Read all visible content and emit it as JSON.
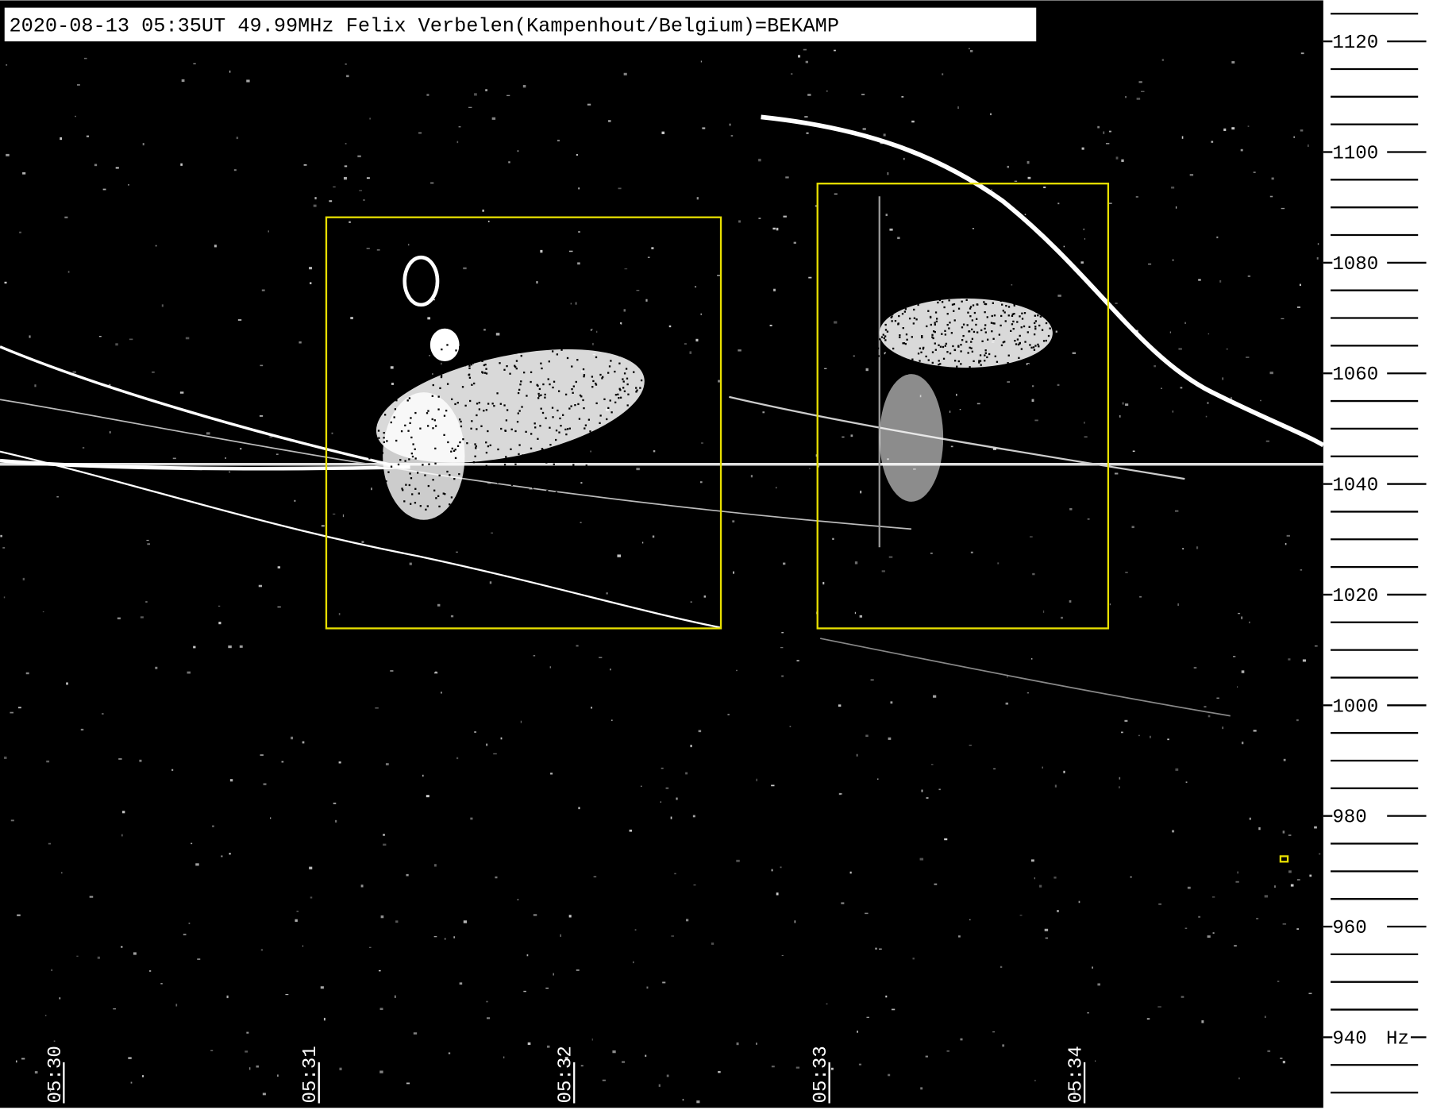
{
  "header": "2020-08-13 05:35UT 49.99MHz Felix Verbelen(Kampenhout/Belgium)=BEKAMP",
  "frequency_axis": {
    "ticks": [
      1120,
      1100,
      1080,
      1060,
      1040,
      1020,
      1000,
      980,
      960,
      940
    ],
    "unit": "Hz"
  },
  "time_axis": {
    "ticks": [
      "05:30",
      "05:31",
      "05:32",
      "05:33",
      "05:34"
    ]
  }
}
